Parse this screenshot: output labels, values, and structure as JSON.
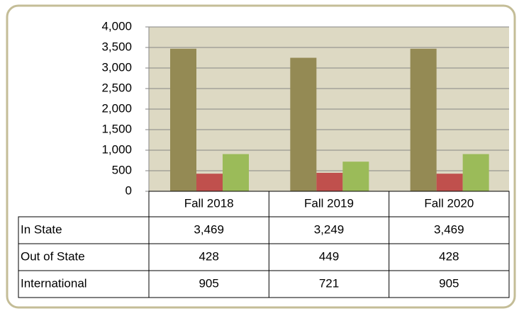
{
  "chart_data": {
    "type": "bar",
    "categories": [
      "Fall 2018",
      "Fall 2019",
      "Fall 2020"
    ],
    "series": [
      {
        "name": "In State",
        "color": "#948a54",
        "values": [
          3469,
          3249,
          3469
        ],
        "value_labels": [
          "3,469",
          "3,249",
          "3,469"
        ]
      },
      {
        "name": "Out of State",
        "color": "#c0504d",
        "values": [
          428,
          449,
          428
        ],
        "value_labels": [
          "428",
          "449",
          "428"
        ]
      },
      {
        "name": "International",
        "color": "#9bbb59",
        "values": [
          905,
          721,
          905
        ],
        "value_labels": [
          "905",
          "721",
          "905"
        ]
      }
    ],
    "ylim": [
      0,
      4000
    ],
    "yticks": [
      0,
      500,
      {
        "value": 1000,
        "label": "1,000"
      },
      {
        "value": 1500,
        "label": "1,500"
      },
      {
        "value": 2000,
        "label": "2,000"
      },
      {
        "value": 2500,
        "label": "2,500"
      },
      {
        "value": 3000,
        "label": "3,000"
      },
      {
        "value": 3500,
        "label": "3,500"
      },
      {
        "value": 4000,
        "label": "4,000"
      }
    ],
    "grid": true,
    "data_table": true
  }
}
